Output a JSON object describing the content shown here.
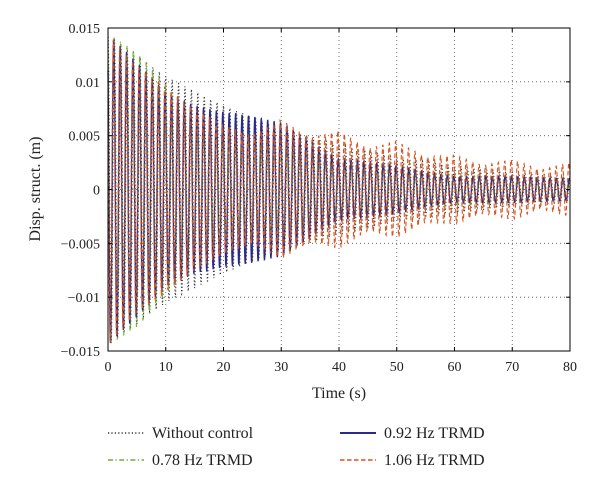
{
  "chart_data": {
    "type": "line",
    "xlabel": "Time (s)",
    "ylabel": "Disp. struct. (m)",
    "xlim": [
      0,
      80
    ],
    "ylim": [
      -0.015,
      0.015
    ],
    "xticks": [
      0,
      10,
      20,
      30,
      40,
      50,
      60,
      70,
      80
    ],
    "xtick_labels": [
      "0",
      "10",
      "20",
      "30",
      "40",
      "50",
      "60",
      "70",
      "80"
    ],
    "yticks": [
      0.015,
      0.01,
      0.005,
      0,
      -0.005,
      -0.01,
      -0.015
    ],
    "ytick_labels": [
      "0.015",
      "0.01",
      "0.005",
      "0",
      "−0.005",
      "−0.01",
      "−0.015"
    ],
    "grid": true,
    "legend_position": "bottom",
    "oscillation_frequency_hz": 0.9,
    "series": [
      {
        "name": "Without control",
        "color": "#333333",
        "style": "dotted",
        "envelope": {
          "t": [
            0,
            5,
            10,
            20,
            30,
            40,
            50,
            60,
            70,
            80
          ],
          "amp": [
            0.0145,
            0.0125,
            0.0105,
            0.0078,
            0.0057,
            0.0042,
            0.003,
            0.0022,
            0.0016,
            0.0012
          ]
        }
      },
      {
        "name": "0.78 Hz TRMD",
        "color": "#6ab42d",
        "style": "dashdot",
        "envelope": {
          "t": [
            0,
            5,
            10,
            15,
            20,
            25,
            30,
            40,
            50,
            60,
            70,
            80
          ],
          "amp": [
            0.0145,
            0.0128,
            0.0098,
            0.0068,
            0.0048,
            0.0045,
            0.0038,
            0.0028,
            0.002,
            0.0015,
            0.0012,
            0.001
          ]
        }
      },
      {
        "name": "0.92 Hz TRMD",
        "color": "#2a2a8a",
        "style": "solid",
        "envelope": {
          "t": [
            0,
            5,
            10,
            15,
            20,
            25,
            30,
            35,
            40,
            45,
            50,
            55,
            60,
            70,
            80
          ],
          "amp": [
            0.0145,
            0.0118,
            0.009,
            0.0078,
            0.0072,
            0.0068,
            0.0062,
            0.0045,
            0.0028,
            0.0026,
            0.0022,
            0.0016,
            0.0012,
            0.0012,
            0.001
          ]
        }
      },
      {
        "name": "1.06 Hz TRMD",
        "color": "#d9531e",
        "style": "dashed",
        "envelope": {
          "t": [
            0,
            5,
            10,
            15,
            20,
            25,
            30,
            35,
            40,
            45,
            50,
            55,
            60,
            65,
            70,
            75,
            80
          ],
          "amp": [
            0.0145,
            0.0115,
            0.0095,
            0.0075,
            0.006,
            0.005,
            0.0065,
            0.0048,
            0.0055,
            0.0038,
            0.0045,
            0.003,
            0.0032,
            0.0022,
            0.0028,
            0.0018,
            0.0025
          ]
        }
      }
    ]
  }
}
